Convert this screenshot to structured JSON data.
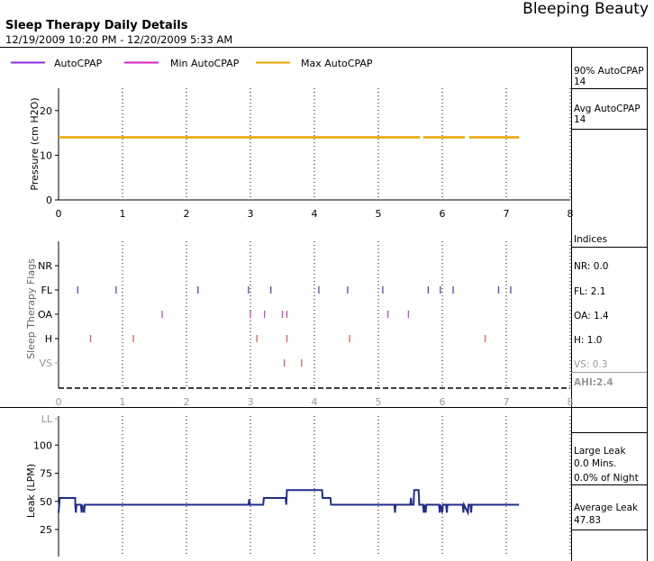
{
  "header": {
    "brand": "Bleeping Beauty",
    "title": "Sleep Therapy Daily Details",
    "date_range": "12/19/2009 10:20 PM - 12/20/2009 5:33 AM"
  },
  "legend": [
    {
      "label": "AutoCPAP",
      "color": "#8a2be2"
    },
    {
      "label": "Min AutoCPAP",
      "color": "#d21ec8"
    },
    {
      "label": "Max AutoCPAP",
      "color": "#e6a400"
    }
  ],
  "side_panel": {
    "p90_label": "90% AutoCPAP",
    "p90_value": "14",
    "avg_label": "Avg AutoCPAP",
    "avg_value": "14",
    "indices_label": "Indices",
    "nr": "NR: 0.0",
    "fl": "FL: 2.1",
    "oa": "OA: 1.4",
    "h": "H: 1.0",
    "vs": "VS: 0.3",
    "ahi": "AHI:2.4",
    "large_leak_label": "Large Leak",
    "large_leak_mins": "0.0 Mins.",
    "large_leak_pct": "0.0% of Night",
    "avg_leak_label": "Average Leak",
    "avg_leak_value": "47.83"
  },
  "chart_data": [
    {
      "type": "line",
      "ylabel": "Pressure (cm H2O)",
      "xlim": [
        0,
        8
      ],
      "ylim": [
        0,
        25
      ],
      "x_ticks": [
        "0",
        "1",
        "2",
        "3",
        "4",
        "5",
        "6",
        "7",
        "8"
      ],
      "y_ticks": [
        "0",
        "10",
        "20"
      ],
      "series": [
        {
          "name": "Max AutoCPAP",
          "color": "#e6a400",
          "segments": [
            [
              0,
              5.65
            ],
            [
              5.7,
              6.35
            ],
            [
              6.42,
              7.2
            ]
          ],
          "value": 14
        }
      ]
    },
    {
      "type": "scatter",
      "ylabel": "Sleep Therapy Flags",
      "xlim": [
        0,
        8
      ],
      "x_ticks": [
        "0",
        "1",
        "2",
        "3",
        "4",
        "5",
        "6",
        "7",
        "8"
      ],
      "categories": [
        "NR",
        "FL",
        "OA",
        "H",
        "VS"
      ],
      "events": {
        "NR": [],
        "FL": [
          0.3,
          0.9,
          2.18,
          2.97,
          3.32,
          4.07,
          4.52,
          5.07,
          5.78,
          5.97,
          6.17,
          6.88,
          7.07
        ],
        "OA": [
          1.62,
          3.0,
          3.22,
          3.5,
          3.57,
          5.15,
          5.47
        ],
        "H": [
          0.5,
          1.17,
          3.1,
          3.57,
          4.55,
          6.67
        ],
        "VS": [
          3.53,
          3.8
        ]
      },
      "colors": {
        "NR": "#777777",
        "FL": "#4b4bb4",
        "OA": "#c64bb4",
        "H": "#d06060",
        "VS": "#d06060"
      }
    },
    {
      "type": "line",
      "ylabel": "Leak (LPM)",
      "xlim": [
        0,
        8
      ],
      "ylim": [
        0,
        120
      ],
      "y_ticks": [
        "25",
        "50",
        "75",
        "100",
        "LL"
      ],
      "series": [
        {
          "name": "",
          "color": "#1f2d8c",
          "points": [
            [
              0,
              40
            ],
            [
              0.02,
              53
            ],
            [
              0.26,
              53
            ],
            [
              0.26,
              47
            ],
            [
              0.27,
              40
            ],
            [
              0.28,
              47
            ],
            [
              0.35,
              47
            ],
            [
              0.36,
              40
            ],
            [
              0.37,
              47
            ],
            [
              0.4,
              40
            ],
            [
              0.41,
              47
            ],
            [
              2.97,
              47
            ],
            [
              2.98,
              52
            ],
            [
              2.99,
              47
            ],
            [
              3.2,
              47
            ],
            [
              3.21,
              53
            ],
            [
              3.55,
              53
            ],
            [
              3.56,
              47
            ],
            [
              3.57,
              60
            ],
            [
              4.12,
              60
            ],
            [
              4.13,
              53
            ],
            [
              4.25,
              53
            ],
            [
              4.26,
              47
            ],
            [
              5.25,
              47
            ],
            [
              5.26,
              40
            ],
            [
              5.27,
              47
            ],
            [
              5.5,
              47
            ],
            [
              5.51,
              53
            ],
            [
              5.52,
              47
            ],
            [
              5.55,
              47
            ],
            [
              5.56,
              60
            ],
            [
              5.63,
              60
            ],
            [
              5.64,
              47
            ],
            [
              5.7,
              47
            ],
            [
              5.71,
              40
            ],
            [
              5.72,
              47
            ],
            [
              5.74,
              40
            ],
            [
              5.75,
              47
            ],
            [
              5.95,
              47
            ],
            [
              5.96,
              40
            ],
            [
              5.97,
              47
            ],
            [
              6.0,
              40
            ],
            [
              6.01,
              47
            ],
            [
              6.06,
              47
            ],
            [
              6.07,
              40
            ],
            [
              6.08,
              47
            ],
            [
              6.32,
              47
            ],
            [
              6.33,
              40
            ],
            [
              6.34,
              47
            ],
            [
              6.4,
              40
            ],
            [
              6.41,
              47
            ],
            [
              6.44,
              47
            ],
            [
              6.45,
              40
            ],
            [
              6.46,
              47
            ],
            [
              7.2,
              47
            ]
          ]
        }
      ]
    }
  ]
}
